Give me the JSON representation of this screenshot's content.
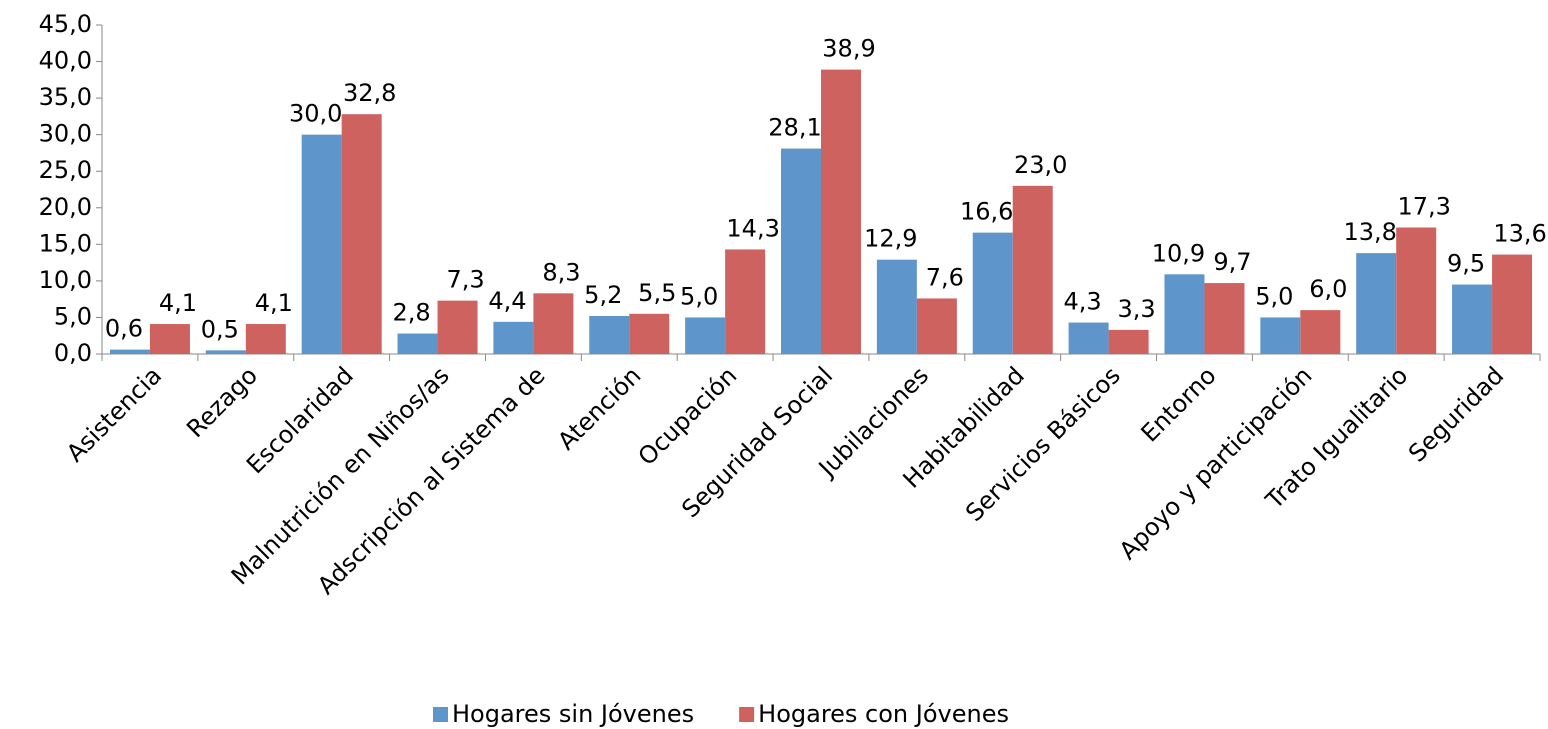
{
  "chart_data": {
    "type": "bar",
    "categories": [
      "Asistencia",
      "Rezago",
      "Escolaridad",
      "Malnutrición en Niños/as",
      "Adscripción al Sistema de",
      "Atención",
      "Ocupación",
      "Seguridad Social",
      "Jubilaciones",
      "Habitabilidad",
      "Servicios Básicos",
      "Entorno",
      "Apoyo y participación",
      "Trato Igualitario",
      "Seguridad"
    ],
    "series": [
      {
        "name": "Hogares sin Jóvenes",
        "color": "#5e96cc",
        "values": [
          0.6,
          0.5,
          30.0,
          2.8,
          4.4,
          5.2,
          5.0,
          28.1,
          12.9,
          16.6,
          4.3,
          10.9,
          5.0,
          13.8,
          9.5
        ],
        "value_labels": [
          "0,6",
          "0,5",
          "30,0",
          "2,8",
          "4,4",
          "5,2",
          "5,0",
          "28,1",
          "12,9",
          "16,6",
          "4,3",
          "10,9",
          "5,0",
          "13,8",
          "9,5"
        ]
      },
      {
        "name": "Hogares con Jóvenes",
        "color": "#cd625f",
        "values": [
          4.1,
          4.1,
          32.8,
          7.3,
          8.3,
          5.5,
          14.3,
          38.9,
          7.6,
          23.0,
          3.3,
          9.7,
          6.0,
          17.3,
          13.6
        ],
        "value_labels": [
          "4,1",
          "4,1",
          "32,8",
          "7,3",
          "8,3",
          "5,5",
          "14,3",
          "38,9",
          "7,6",
          "23,0",
          "3,3",
          "9,7",
          "6,0",
          "17,3",
          "13,6"
        ]
      }
    ],
    "ylim": [
      0,
      45
    ],
    "yticks": [
      {
        "value": 0,
        "label": "0,0"
      },
      {
        "value": 5,
        "label": "5,0"
      },
      {
        "value": 10,
        "label": "10,0"
      },
      {
        "value": 15,
        "label": "15,0"
      },
      {
        "value": 20,
        "label": "20,0"
      },
      {
        "value": 25,
        "label": "25,0"
      },
      {
        "value": 30,
        "label": "30,0"
      },
      {
        "value": 35,
        "label": "35,0"
      },
      {
        "value": 40,
        "label": "40,0"
      },
      {
        "value": 45,
        "label": "45,0"
      }
    ],
    "legend": "bottom"
  }
}
